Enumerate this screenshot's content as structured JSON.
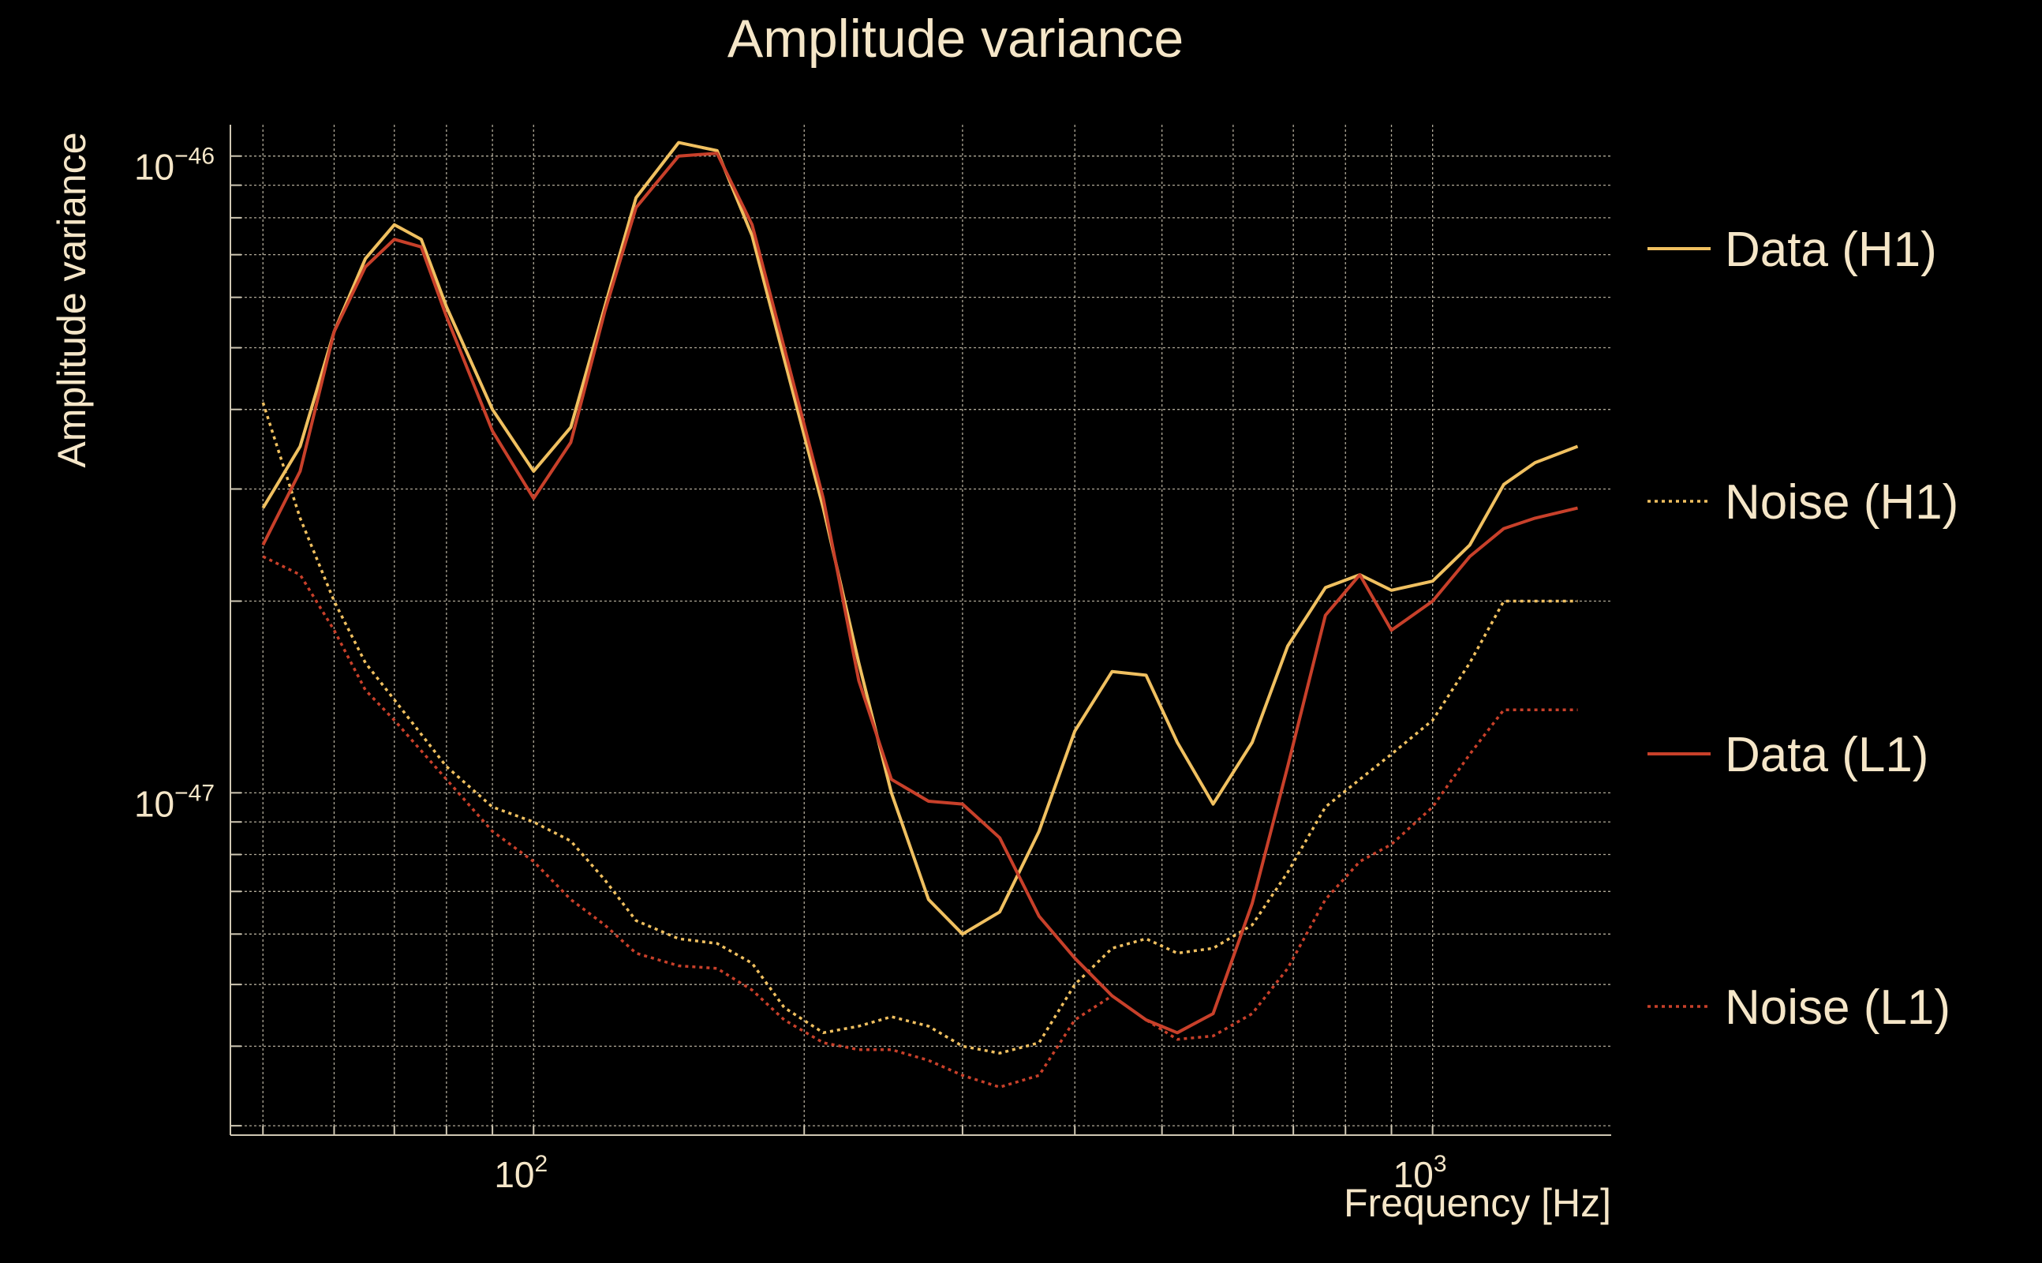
{
  "colors": {
    "background": "#000000",
    "text": "#f5e6c8",
    "grid": "#cfc7b3",
    "data_h1": "#f0c060",
    "data_l1": "#c8402a"
  },
  "chart_data": {
    "type": "line",
    "title": "Amplitude variance",
    "xlabel": "Frequency [Hz]",
    "ylabel": "Amplitude variance",
    "xscale": "log",
    "yscale": "log",
    "xlim": [
      46,
      1580
    ],
    "ylim": [
      2.9e-48,
      1.12e-46
    ],
    "grid": true,
    "legend_position": "right",
    "x_ticks": [
      {
        "value": 100,
        "base": "10",
        "exp": "2"
      },
      {
        "value": 1000,
        "base": "10",
        "exp": "3"
      }
    ],
    "y_ticks": [
      {
        "value": 1e-47,
        "base": "10",
        "exp": "−47"
      },
      {
        "value": 1e-46,
        "base": "10",
        "exp": "−46"
      }
    ],
    "series": [
      {
        "name": "Data (H1)",
        "color": "#f0c060",
        "style": "solid",
        "x": [
          50,
          55,
          60,
          65,
          70,
          75,
          80,
          90,
          100,
          110,
          120,
          130,
          145,
          160,
          175,
          190,
          210,
          230,
          250,
          275,
          300,
          330,
          365,
          400,
          440,
          480,
          520,
          570,
          630,
          690,
          760,
          830,
          900,
          1000,
          1100,
          1200,
          1300,
          1450
        ],
        "y": [
          2.8e-47,
          3.5e-47,
          5.3e-47,
          6.9e-47,
          7.8e-47,
          7.4e-47,
          5.8e-47,
          4e-47,
          3.2e-47,
          3.75e-47,
          5.8e-47,
          8.6e-47,
          1.05e-46,
          1.02e-46,
          7.5e-47,
          4.8e-47,
          2.8e-47,
          1.6e-47,
          1e-47,
          6.8e-48,
          6e-48,
          6.5e-48,
          8.7e-48,
          1.25e-47,
          1.55e-47,
          1.53e-47,
          1.2e-47,
          9.6e-48,
          1.2e-47,
          1.7e-47,
          2.1e-47,
          2.2e-47,
          2.08e-47,
          2.15e-47,
          2.45e-47,
          3.05e-47,
          3.3e-47,
          3.5e-47
        ]
      },
      {
        "name": "Noise (H1)",
        "color": "#f0c060",
        "style": "dotted",
        "x": [
          50,
          55,
          60,
          65,
          70,
          80,
          90,
          100,
          110,
          120,
          130,
          145,
          160,
          175,
          190,
          210,
          230,
          250,
          275,
          300,
          330,
          365,
          400,
          440,
          480,
          520,
          570,
          630,
          690,
          760,
          830,
          900,
          1000,
          1100,
          1200,
          1300,
          1450
        ],
        "y": [
          4.1e-47,
          2.7e-47,
          2e-47,
          1.6e-47,
          1.4e-47,
          1.1e-47,
          9.5e-48,
          9e-48,
          8.4e-48,
          7.3e-48,
          6.3e-48,
          5.9e-48,
          5.8e-48,
          5.4e-48,
          4.6e-48,
          4.2e-48,
          4.3e-48,
          4.45e-48,
          4.3e-48,
          4e-48,
          3.9e-48,
          4.05e-48,
          5e-48,
          5.7e-48,
          5.9e-48,
          5.6e-48,
          5.7e-48,
          6.2e-48,
          7.5e-48,
          9.5e-48,
          1.05e-47,
          1.15e-47,
          1.3e-47,
          1.6e-47,
          2e-47,
          2e-47,
          2e-47
        ]
      },
      {
        "name": "Data (L1)",
        "color": "#c8402a",
        "style": "solid",
        "x": [
          50,
          55,
          60,
          65,
          70,
          75,
          80,
          90,
          100,
          110,
          120,
          130,
          145,
          160,
          175,
          190,
          210,
          230,
          250,
          275,
          300,
          330,
          365,
          400,
          440,
          480,
          520,
          570,
          630,
          690,
          760,
          830,
          900,
          1000,
          1100,
          1200,
          1300,
          1450
        ],
        "y": [
          2.45e-47,
          3.2e-47,
          5.3e-47,
          6.7e-47,
          7.4e-47,
          7.2e-47,
          5.6e-47,
          3.7e-47,
          2.9e-47,
          3.55e-47,
          5.7e-47,
          8.3e-47,
          1e-46,
          1.01e-46,
          7.8e-47,
          5e-47,
          2.9e-47,
          1.5e-47,
          1.05e-47,
          9.7e-48,
          9.6e-48,
          8.5e-48,
          6.4e-48,
          5.5e-48,
          4.8e-48,
          4.4e-48,
          4.2e-48,
          4.5e-48,
          6.7e-48,
          1.1e-47,
          1.9e-47,
          2.2e-47,
          1.8e-47,
          2e-47,
          2.35e-47,
          2.6e-47,
          2.7e-47,
          2.8e-47
        ]
      },
      {
        "name": "Noise (L1)",
        "color": "#c8402a",
        "style": "dotted",
        "x": [
          50,
          55,
          60,
          65,
          70,
          80,
          90,
          100,
          110,
          120,
          130,
          145,
          160,
          175,
          190,
          210,
          230,
          250,
          275,
          300,
          330,
          365,
          400,
          440,
          480,
          520,
          570,
          630,
          690,
          760,
          830,
          900,
          1000,
          1100,
          1200,
          1300,
          1450
        ],
        "y": [
          2.35e-47,
          2.2e-47,
          1.8e-47,
          1.45e-47,
          1.3e-47,
          1.05e-47,
          8.7e-48,
          7.8e-48,
          6.8e-48,
          6.2e-48,
          5.6e-48,
          5.35e-48,
          5.3e-48,
          4.9e-48,
          4.4e-48,
          4.05e-48,
          3.95e-48,
          3.95e-48,
          3.8e-48,
          3.6e-48,
          3.45e-48,
          3.6e-48,
          4.4e-48,
          4.8e-48,
          4.4e-48,
          4.1e-48,
          4.15e-48,
          4.5e-48,
          5.3e-48,
          6.8e-48,
          7.8e-48,
          8.3e-48,
          9.5e-48,
          1.15e-47,
          1.35e-47,
          1.35e-47,
          1.35e-47
        ]
      }
    ]
  }
}
